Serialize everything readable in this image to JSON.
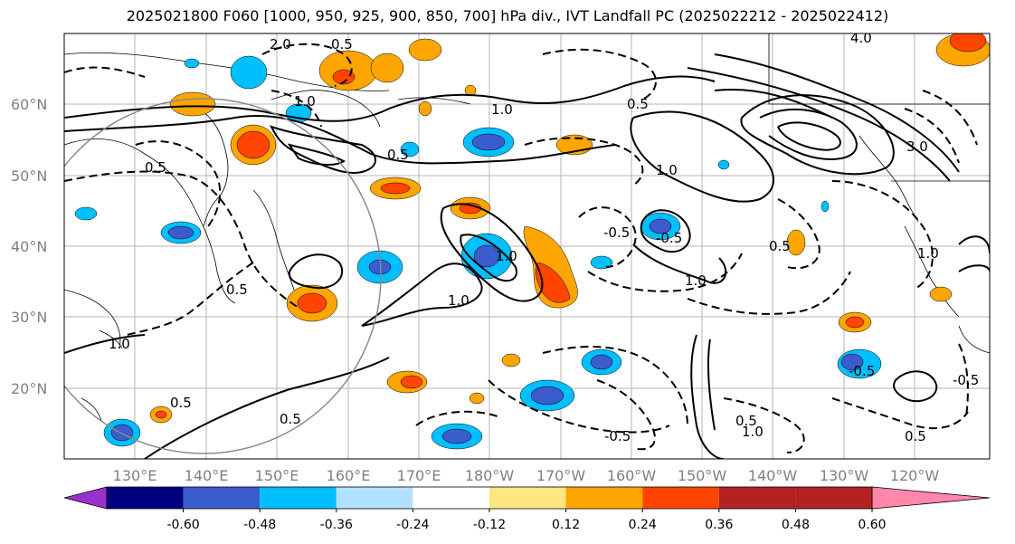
{
  "title": "2025021800 F060 [1000, 950, 925, 900, 850, 700] hPa div., IVT Landfall PC (2025022212 - 2025022412)",
  "lat_ticks": [
    "60°N",
    "50°N",
    "40°N",
    "30°N",
    "20°N"
  ],
  "lon_ticks": [
    "130°E",
    "140°E",
    "150°E",
    "160°E",
    "170°E",
    "180°W",
    "170°W",
    "160°W",
    "150°W",
    "140°W",
    "130°W",
    "120°W"
  ],
  "colorbar": {
    "colors": [
      "#9932cc",
      "#000080",
      "#3a5ccc",
      "#00bfff",
      "#b0e2ff",
      "#ffffff",
      "#ffe680",
      "#ffa500",
      "#ff4500",
      "#b22222",
      "#ff88aa"
    ],
    "tick_labels": [
      "-0.60",
      "-0.48",
      "-0.36",
      "-0.24",
      "-0.12",
      "0.12",
      "0.24",
      "0.36",
      "0.48",
      "0.60"
    ]
  },
  "contour_labels": [
    "2.0",
    "0.5",
    "1.0",
    "0.5",
    "1.0",
    "0.5",
    "1.0",
    "-0.5",
    "1.0",
    "0.5",
    "0.5",
    "0.5",
    "3.0",
    "4.0",
    "1.0",
    "1.0",
    "0.5",
    "-0.5",
    "0.5",
    "1.0",
    "-0.5",
    "0.5",
    "-0.5",
    "1.0",
    "1.0",
    "-0.5",
    "0.5"
  ]
}
